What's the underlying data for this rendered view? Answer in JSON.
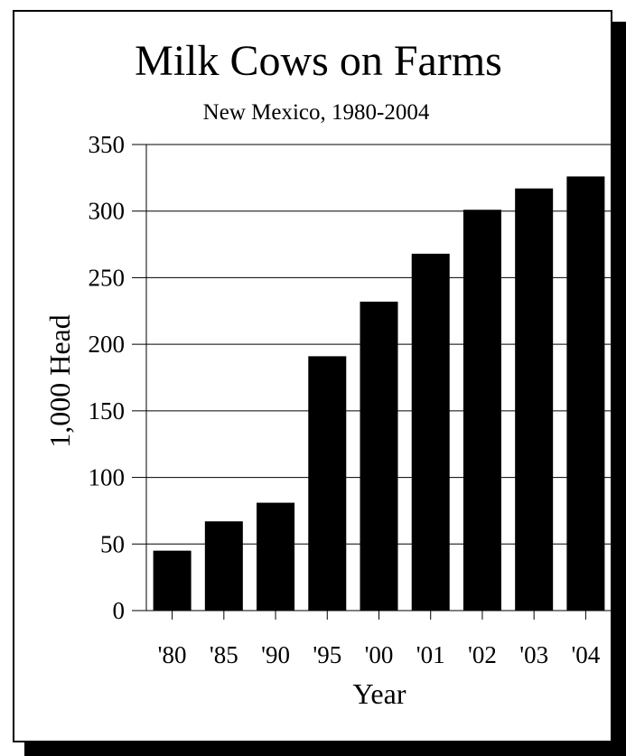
{
  "chart_data": {
    "type": "bar",
    "title": "Milk Cows on Farms",
    "subtitle": "New Mexico, 1980-2004",
    "xlabel": "Year",
    "ylabel": "1,000 Head",
    "categories": [
      "'80",
      "'85",
      "'90",
      "'95",
      "'00",
      "'01",
      "'02",
      "'03",
      "'04"
    ],
    "values": [
      45,
      67,
      81,
      191,
      232,
      268,
      301,
      317,
      326
    ],
    "ylim": [
      0,
      350
    ],
    "yticks": [
      0,
      50,
      100,
      150,
      200,
      250,
      300,
      350
    ],
    "grid": true,
    "bar_color": "#000000"
  }
}
